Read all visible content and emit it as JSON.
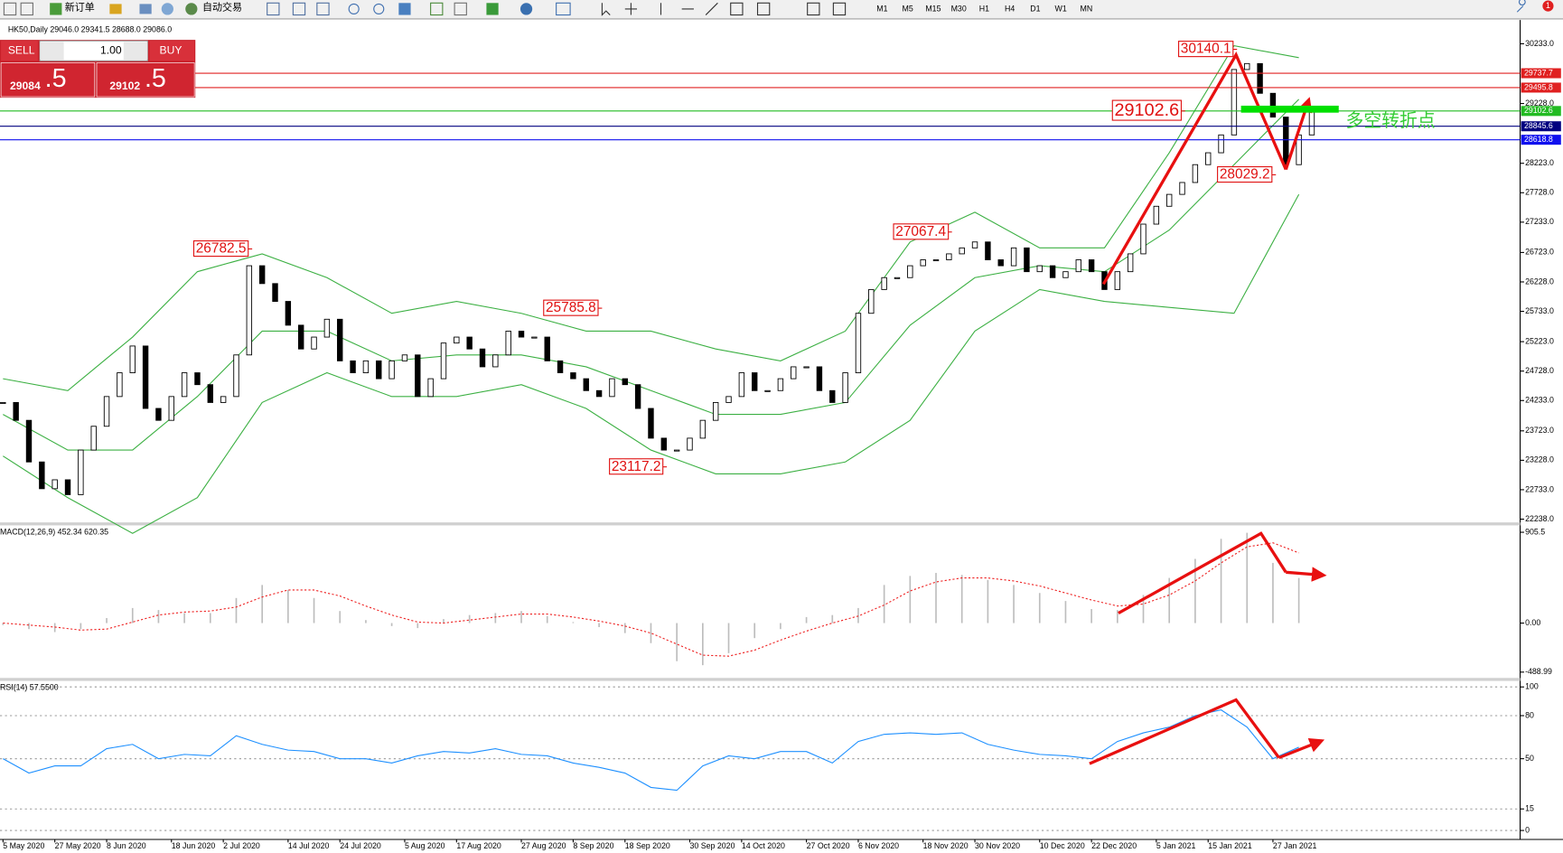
{
  "toolbar": {
    "new_order": "新订单",
    "auto_trading": "自动交易",
    "timeframes": [
      "M1",
      "M5",
      "M15",
      "M30",
      "H1",
      "H4",
      "D1",
      "W1",
      "MN"
    ],
    "notifications": "1"
  },
  "trade_panel": {
    "sell": "SELL",
    "buy": "BUY",
    "lots": "1.00",
    "bid_main": "29084",
    "bid_frac": ".5",
    "ask_main": "29102",
    "ask_frac": ".5"
  },
  "chart_data": [
    {
      "type": "candlestick",
      "title": "HK50,Daily 29046.0 29341.5 28688.0 29086.0",
      "categories": [
        "5 May 2020",
        null,
        null,
        null,
        "27 May 2020",
        null,
        null,
        null,
        "8 Jun 2020",
        null,
        null,
        null,
        null,
        "18 Jun 2020",
        null,
        null,
        null,
        "2 Jul 2020",
        null,
        null,
        null,
        null,
        "14 Jul 2020",
        null,
        null,
        null,
        "24 Jul 2020",
        null,
        null,
        null,
        null,
        "5 Aug 2020",
        null,
        null,
        null,
        "17 Aug 2020",
        null,
        null,
        null,
        null,
        "27 Aug 2020",
        null,
        null,
        null,
        "8 Sep 2020",
        null,
        null,
        null,
        "18 Sep 2020",
        null,
        null,
        null,
        null,
        "30 Sep 2020",
        null,
        null,
        null,
        "14 Oct 2020",
        null,
        null,
        null,
        null,
        "27 Oct 2020",
        null,
        null,
        null,
        "6 Nov 2020",
        null,
        null,
        null,
        null,
        "18 Nov 2020",
        null,
        null,
        null,
        "30 Nov 2020",
        null,
        null,
        null,
        null,
        "10 Dec 2020",
        null,
        null,
        null,
        "22 Dec 2020",
        null,
        null,
        null,
        null,
        "5 Jan 2021",
        null,
        null,
        null,
        "15 Jan 2021",
        null,
        null,
        null,
        null,
        "27 Jan 2021",
        null,
        null,
        null
      ],
      "values": [
        24200,
        23900,
        23200,
        22750,
        22900,
        22650,
        23400,
        23800,
        24300,
        24700,
        25150,
        24100,
        23900,
        24300,
        24700,
        24500,
        24200,
        24300,
        25000,
        26500,
        26200,
        25900,
        25500,
        25100,
        25300,
        25600,
        24900,
        24700,
        24900,
        24600,
        24900,
        25000,
        24300,
        24600,
        25200,
        25300,
        25100,
        24800,
        25000,
        25400,
        25300,
        25300,
        24900,
        24700,
        24600,
        24400,
        24300,
        24600,
        24500,
        24100,
        23600,
        23400,
        23400,
        23600,
        23900,
        24200,
        24300,
        24700,
        24400,
        24400,
        24600,
        24800,
        24800,
        24400,
        24200,
        24700,
        25700,
        26100,
        26300,
        26300,
        26500,
        26600,
        26600,
        26700,
        26800,
        26900,
        26600,
        26500,
        26800,
        26400,
        26500,
        26300,
        26400,
        26600,
        26400,
        26100,
        26400,
        26700,
        27200,
        27500,
        27700,
        27900,
        28200,
        28400,
        28700,
        29800,
        29900,
        29400,
        29000,
        28200,
        28700,
        29086
      ],
      "bollinger": {
        "color": "#3cb043",
        "x": [
          0,
          5,
          10,
          15,
          20,
          25,
          30,
          35,
          40,
          45,
          50,
          55,
          60,
          65,
          70,
          75,
          80,
          85,
          90,
          95,
          100
        ],
        "upper": [
          24600,
          24400,
          25300,
          26400,
          26700,
          26300,
          25700,
          25900,
          25700,
          25400,
          25400,
          25100,
          24900,
          25400,
          26900,
          27400,
          26800,
          26800,
          28400,
          30200,
          30000
        ],
        "middle": [
          24000,
          23400,
          23400,
          24300,
          25400,
          25400,
          24900,
          25000,
          25000,
          24800,
          24400,
          24000,
          24000,
          24200,
          25500,
          26300,
          26500,
          26400,
          27100,
          28200,
          29300
        ],
        "lower": [
          23300,
          22600,
          22000,
          22600,
          24200,
          24700,
          24300,
          24300,
          24500,
          24100,
          23400,
          23000,
          23000,
          23200,
          23900,
          25400,
          26100,
          25900,
          25800,
          25700,
          27700
        ]
      },
      "ylim": [
        22200,
        30550
      ],
      "yticks": [
        {
          "value": 30233,
          "label": "30233.0"
        },
        {
          "value": 29228,
          "label": "29228.0"
        },
        {
          "value": 28223,
          "label": "28223.0"
        },
        {
          "value": 27728,
          "label": "27728.0"
        },
        {
          "value": 27233,
          "label": "27233.0"
        },
        {
          "value": 26723,
          "label": "26723.0"
        },
        {
          "value": 26228,
          "label": "26228.0"
        },
        {
          "value": 25733,
          "label": "25733.0"
        },
        {
          "value": 25223,
          "label": "25223.0"
        },
        {
          "value": 24728,
          "label": "24728.0"
        },
        {
          "value": 24233,
          "label": "24233.0"
        },
        {
          "value": 23723,
          "label": "23723.0"
        },
        {
          "value": 23228,
          "label": "23228.0"
        },
        {
          "value": 22733,
          "label": "22733.0"
        },
        {
          "value": 22238,
          "label": "22238.0"
        }
      ],
      "levels": [
        {
          "value": 29737.7,
          "color": "#e02020"
        },
        {
          "value": 29495.8,
          "color": "#e02020"
        },
        {
          "value": 29102.6,
          "color": "#22bb22"
        },
        {
          "value": 28845.6,
          "color": "#000080"
        },
        {
          "value": 28618.8,
          "color": "#1010ee"
        }
      ],
      "annotations": [
        {
          "value": 30140.1,
          "x": 95
        },
        {
          "value": 29102.6,
          "x": 91
        },
        {
          "value": 28029.2,
          "x": 98
        },
        {
          "value": 26782.5,
          "x": 19
        },
        {
          "value": 27067.4,
          "x": 73
        },
        {
          "value": 25785.8,
          "x": 46
        },
        {
          "value": 23117.2,
          "x": 51
        }
      ],
      "turning_point_label": "多空转折点"
    },
    {
      "type": "macd",
      "title": "MACD(12,26,9) 452.34 620.35",
      "x": [
        0,
        2,
        4,
        6,
        8,
        10,
        12,
        14,
        16,
        18,
        20,
        22,
        24,
        26,
        28,
        30,
        32,
        34,
        36,
        38,
        40,
        42,
        44,
        46,
        48,
        50,
        52,
        54,
        56,
        58,
        60,
        62,
        64,
        66,
        68,
        70,
        72,
        74,
        76,
        78,
        80,
        82,
        84,
        86,
        88,
        90,
        92,
        94,
        96,
        98,
        100
      ],
      "series": [
        {
          "style": "histogram",
          "color": "#bdbdbd",
          "values": [
            -20,
            -60,
            -90,
            -60,
            50,
            150,
            130,
            100,
            100,
            250,
            380,
            330,
            250,
            120,
            30,
            -30,
            -50,
            40,
            80,
            100,
            120,
            70,
            10,
            -40,
            -100,
            -200,
            -380,
            -420,
            -300,
            -150,
            -60,
            60,
            80,
            150,
            380,
            470,
            500,
            480,
            430,
            380,
            300,
            220,
            140,
            130,
            280,
            450,
            640,
            840,
            900,
            600,
            450
          ]
        },
        {
          "style": "dotted",
          "color": "#ee2222",
          "values": [
            0,
            -20,
            -40,
            -70,
            -60,
            10,
            80,
            110,
            120,
            160,
            260,
            330,
            330,
            270,
            170,
            80,
            10,
            0,
            30,
            60,
            90,
            90,
            60,
            20,
            -30,
            -100,
            -210,
            -320,
            -330,
            -270,
            -170,
            -80,
            0,
            70,
            180,
            320,
            410,
            450,
            450,
            420,
            370,
            300,
            230,
            170,
            190,
            280,
            420,
            600,
            760,
            800,
            700
          ]
        }
      ],
      "ylim": [
        -547,
        964
      ],
      "yticks": [
        905.5,
        {
          "value": 0,
          "label": "0.00"
        },
        -488.99
      ]
    },
    {
      "type": "line",
      "title": "RSI(14) 57.5500",
      "x": [
        0,
        2,
        4,
        6,
        8,
        10,
        12,
        14,
        16,
        18,
        20,
        22,
        24,
        26,
        28,
        30,
        32,
        34,
        36,
        38,
        40,
        42,
        44,
        46,
        48,
        50,
        52,
        54,
        56,
        58,
        60,
        62,
        64,
        66,
        68,
        70,
        72,
        74,
        76,
        78,
        80,
        82,
        84,
        86,
        88,
        90,
        92,
        94,
        96,
        98,
        100
      ],
      "series": [
        {
          "color": "#1e90ff",
          "values": [
            50,
            40,
            45,
            45,
            57,
            60,
            50,
            53,
            52,
            66,
            60,
            56,
            55,
            50,
            50,
            47,
            52,
            55,
            54,
            57,
            53,
            52,
            47,
            44,
            40,
            30,
            28,
            45,
            52,
            50,
            55,
            55,
            47,
            62,
            67,
            68,
            67,
            68,
            60,
            56,
            53,
            52,
            50,
            62,
            68,
            72,
            80,
            84,
            72,
            50,
            58
          ]
        }
      ],
      "ylim": [
        -6.25,
        103.5
      ],
      "yticks": [
        100,
        80,
        50,
        15,
        0
      ],
      "grid": true
    }
  ]
}
